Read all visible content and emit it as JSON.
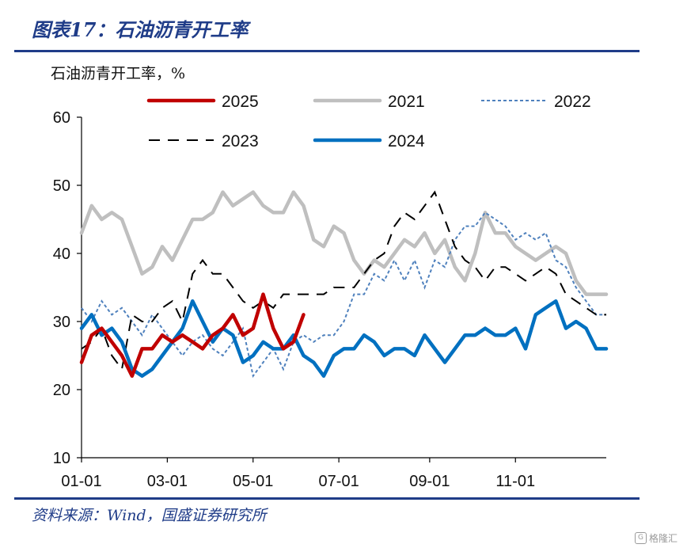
{
  "header": {
    "title": "图表17：石油沥青开工率",
    "unit_label": "石油沥青开工率，%"
  },
  "footer": {
    "source": "资料来源：Wind，国盛证券研究所",
    "watermark_badge": "G",
    "watermark_text": "格隆汇"
  },
  "colors": {
    "brand_blue": "#1f3c88",
    "s2025": "#c00000",
    "s2021": "#bfbfbf",
    "s2022": "#4f81bd",
    "s2023": "#000000",
    "s2024": "#0070c0"
  },
  "chart_data": {
    "type": "line",
    "title": "石油沥青开工率",
    "ylabel": "石油沥青开工率，%",
    "xlabel": "",
    "ylim": [
      10,
      60
    ],
    "yticks": [
      "10",
      "20",
      "30",
      "40",
      "50",
      "60"
    ],
    "xticks": [
      "01-01",
      "03-01",
      "05-01",
      "07-01",
      "09-01",
      "11-01"
    ],
    "x_week_range": [
      1,
      53
    ],
    "xtick_weeks": [
      1,
      9.5,
      18,
      26.5,
      35.5,
      44
    ],
    "grid": false,
    "legend_position": "top",
    "series": [
      {
        "name": "2025",
        "style": "solid-thick",
        "color": "#c00000",
        "x": [
          1,
          2,
          3,
          4,
          5,
          6,
          7,
          8,
          9,
          10,
          11,
          12,
          13,
          14,
          15,
          16,
          17,
          18,
          19,
          20,
          21,
          22,
          23
        ],
        "values": [
          24,
          28,
          29,
          27,
          25,
          22,
          26,
          26,
          28,
          27,
          28,
          27,
          26,
          28,
          29,
          31,
          28,
          29,
          34,
          29,
          26,
          27,
          31
        ]
      },
      {
        "name": "2021",
        "style": "solid-thick",
        "color": "#bfbfbf",
        "x": [
          1,
          2,
          3,
          4,
          5,
          6,
          7,
          8,
          9,
          10,
          11,
          12,
          13,
          14,
          15,
          16,
          17,
          18,
          19,
          20,
          21,
          22,
          23,
          24,
          25,
          26,
          27,
          28,
          29,
          30,
          31,
          32,
          33,
          34,
          35,
          36,
          37,
          38,
          39,
          40,
          41,
          42,
          43,
          44,
          45,
          46,
          47,
          48,
          49,
          50,
          51,
          52,
          53
        ],
        "values": [
          43,
          47,
          45,
          46,
          45,
          41,
          37,
          38,
          41,
          39,
          42,
          45,
          45,
          46,
          49,
          47,
          48,
          49,
          47,
          46,
          46,
          49,
          47,
          42,
          41,
          44,
          43,
          39,
          37,
          39,
          38,
          40,
          42,
          41,
          43,
          40,
          42,
          38,
          36,
          40,
          46,
          43,
          43,
          41,
          40,
          39,
          40,
          41,
          40,
          36,
          34,
          34,
          34
        ]
      },
      {
        "name": "2022",
        "style": "dotted",
        "color": "#4f81bd",
        "x": [
          1,
          2,
          3,
          4,
          5,
          6,
          7,
          8,
          9,
          10,
          11,
          12,
          13,
          14,
          15,
          16,
          17,
          18,
          19,
          20,
          21,
          22,
          23,
          24,
          25,
          26,
          27,
          28,
          29,
          30,
          31,
          32,
          33,
          34,
          35,
          36,
          37,
          38,
          39,
          40,
          41,
          42,
          43,
          44,
          45,
          46,
          47,
          48,
          49,
          50,
          51,
          52,
          53
        ],
        "values": [
          32,
          30,
          33,
          31,
          32,
          30,
          28,
          31,
          29,
          27,
          25,
          27,
          28,
          26,
          25,
          27,
          29,
          22,
          24,
          26,
          23,
          27,
          28,
          27,
          28,
          28,
          30,
          34,
          34,
          37,
          36,
          39,
          36,
          39,
          35,
          39,
          38,
          42,
          44,
          44,
          46,
          45,
          44,
          42,
          43,
          42,
          43,
          39,
          38,
          35,
          33,
          31,
          31
        ]
      },
      {
        "name": "2023",
        "style": "dashed",
        "color": "#000000",
        "x": [
          1,
          2,
          3,
          4,
          5,
          6,
          7,
          8,
          9,
          10,
          11,
          12,
          13,
          14,
          15,
          16,
          17,
          18,
          19,
          20,
          21,
          22,
          23,
          24,
          25,
          26,
          27,
          28,
          29,
          30,
          31,
          32,
          33,
          34,
          35,
          36,
          37,
          38,
          39,
          40,
          41,
          42,
          43,
          44,
          45,
          46,
          47,
          48,
          49,
          50,
          51,
          52,
          53
        ],
        "values": [
          26,
          27,
          29,
          25,
          23,
          31,
          30,
          30,
          32,
          33,
          30,
          37,
          39,
          37,
          37,
          35,
          33,
          32,
          33,
          32,
          34,
          34,
          34,
          34,
          34,
          35,
          35,
          35,
          37,
          39,
          40,
          44,
          46,
          45,
          47,
          49,
          45,
          41,
          39,
          38,
          36,
          38,
          38,
          37,
          36,
          37,
          38,
          37,
          34,
          33,
          32,
          31,
          31
        ]
      },
      {
        "name": "2024",
        "style": "solid-thick",
        "color": "#0070c0",
        "x": [
          1,
          2,
          3,
          4,
          5,
          6,
          7,
          8,
          9,
          10,
          11,
          12,
          13,
          14,
          15,
          16,
          17,
          18,
          19,
          20,
          21,
          22,
          23,
          24,
          25,
          26,
          27,
          28,
          29,
          30,
          31,
          32,
          33,
          34,
          35,
          36,
          37,
          38,
          39,
          40,
          41,
          42,
          43,
          44,
          45,
          46,
          47,
          48,
          49,
          50,
          51,
          52,
          53
        ],
        "values": [
          29,
          31,
          28,
          29,
          27,
          23,
          22,
          23,
          25,
          27,
          29,
          33,
          30,
          27,
          29,
          28,
          24,
          25,
          27,
          26,
          26,
          28,
          25,
          24,
          22,
          25,
          26,
          26,
          28,
          27,
          25,
          26,
          26,
          25,
          28,
          26,
          24,
          26,
          28,
          28,
          29,
          28,
          28,
          29,
          26,
          31,
          32,
          33,
          29,
          30,
          29,
          26,
          26
        ]
      }
    ]
  }
}
